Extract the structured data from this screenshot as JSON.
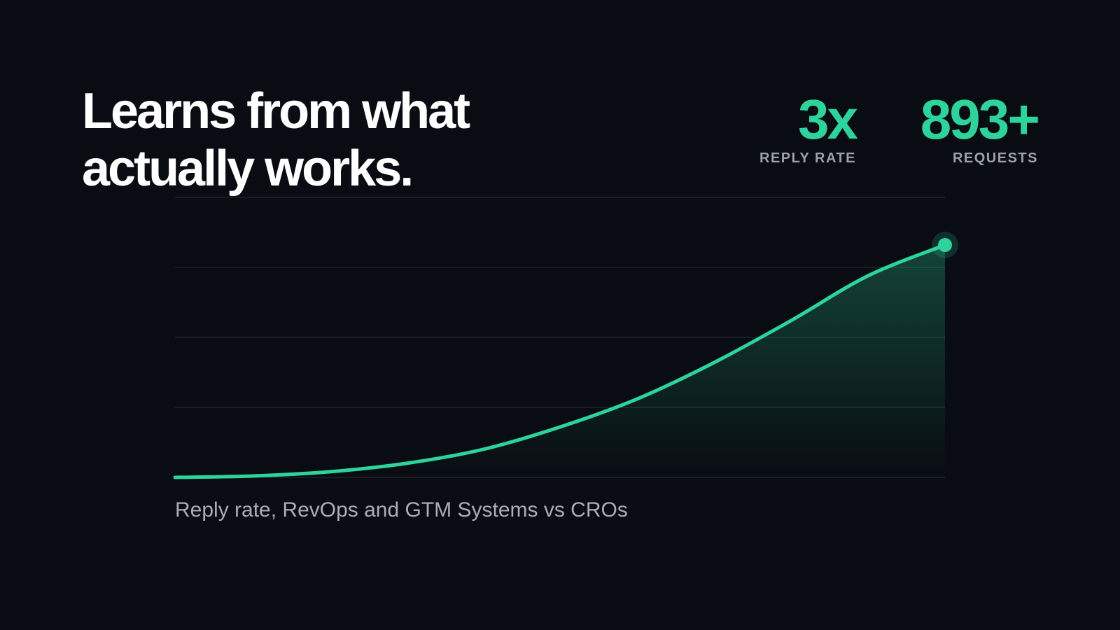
{
  "headline": {
    "line1": "Learns from what",
    "line2": "actually works."
  },
  "stats": [
    {
      "value": "3x",
      "label": "REPLY RATE"
    },
    {
      "value": "893+",
      "label": "REQUESTS"
    }
  ],
  "caption": "Reply rate, RevOps and GTM Systems vs CROs",
  "colors": {
    "background": "#090c12",
    "accent": "#2dd39b",
    "gridline": "#1f242d",
    "caption": "#a9adb5"
  },
  "chart_data": {
    "type": "area",
    "title": "",
    "xlabel": "",
    "ylabel": "",
    "grid": true,
    "gridlines": 5,
    "xlim": [
      0,
      1
    ],
    "ylim": [
      0,
      1
    ],
    "series": [
      {
        "x": [
          0,
          0.1,
          0.2,
          0.3,
          0.4,
          0.5,
          0.6,
          0.7,
          0.8,
          0.9,
          1.0
        ],
        "y": [
          0,
          0.005,
          0.02,
          0.05,
          0.1,
          0.18,
          0.28,
          0.41,
          0.56,
          0.72,
          0.83
        ]
      }
    ],
    "endpoint_marker": true
  }
}
